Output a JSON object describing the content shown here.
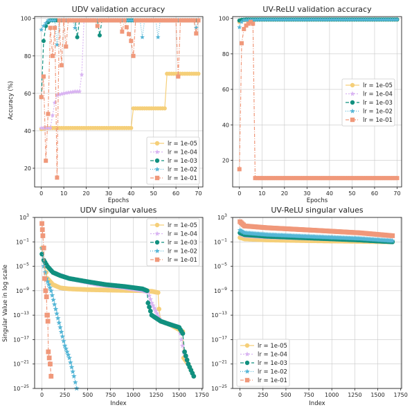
{
  "colors": {
    "lr=1e-05": "#f5cf79",
    "lr=1e-04": "#d9b4f2",
    "lr=1e-03": "#11907f",
    "lr=1e-02": "#55b6d6",
    "lr=1e-01": "#f0987a"
  },
  "chart_data": [
    {
      "type": "line",
      "title": "UDV validation accuracy",
      "xlabel": "Epochs",
      "ylabel": "Accuracy (%)",
      "xlim": [
        -3,
        72
      ],
      "ylim": [
        10,
        101
      ],
      "xticks": [
        0,
        10,
        20,
        30,
        40,
        50,
        60,
        70
      ],
      "yticks": [
        20,
        40,
        60,
        80,
        100
      ],
      "grid": true,
      "legend_position": "lower-right",
      "series": [
        {
          "name": "lr = 1e-05",
          "x": [
            0,
            2,
            5,
            10,
            20,
            30,
            40,
            41,
            45,
            50,
            55,
            56,
            60,
            65,
            70
          ],
          "y": [
            41,
            41.5,
            41.5,
            41.5,
            41.5,
            41.5,
            41.5,
            52,
            52,
            52,
            52,
            70.5,
            70.5,
            70.5,
            70.5
          ]
        },
        {
          "name": "lr = 1e-04",
          "x": [
            0,
            2,
            4,
            6,
            7,
            10,
            15,
            17,
            18,
            19,
            20,
            25,
            30,
            40,
            50,
            60,
            70
          ],
          "y": [
            41.5,
            41.5,
            41.5,
            55,
            59,
            60,
            61,
            61,
            70,
            99,
            99,
            99,
            99,
            99,
            99,
            99,
            99
          ]
        },
        {
          "name": "lr = 1e-03",
          "x": [
            0,
            1,
            2,
            3,
            4,
            6,
            10,
            15,
            16,
            17,
            20,
            25,
            26,
            27,
            30,
            40,
            50,
            60,
            70
          ],
          "y": [
            58,
            88,
            96,
            98,
            99,
            99,
            99,
            99,
            90,
            99,
            99,
            99,
            91,
            99,
            99,
            99,
            99,
            99,
            99
          ]
        },
        {
          "name": "lr = 1e-02",
          "x": [
            0,
            1,
            3,
            6,
            7,
            8,
            10,
            14,
            15,
            16,
            20,
            30,
            40,
            44,
            45,
            46,
            50,
            51,
            52,
            53,
            60,
            68,
            69,
            70
          ],
          "y": [
            94,
            96,
            99,
            99,
            86,
            99,
            99,
            99,
            95,
            99,
            99,
            99,
            99,
            99,
            90,
            99,
            99,
            99,
            90,
            99,
            99,
            99,
            95,
            99
          ]
        },
        {
          "name": "lr = 1e-01",
          "x": [
            0,
            1,
            2,
            3,
            4,
            5,
            6,
            7,
            8,
            9,
            10,
            11,
            12,
            14,
            16,
            20,
            24,
            25,
            26,
            30,
            35,
            36,
            37,
            40,
            41,
            42,
            45,
            50,
            55,
            60,
            61,
            62,
            65,
            68,
            69,
            70
          ],
          "y": [
            58,
            69,
            24,
            49,
            95,
            80,
            95,
            15,
            99,
            75,
            99,
            85,
            99,
            99,
            99,
            99,
            99,
            96,
            99,
            99,
            99,
            93,
            99,
            88,
            80,
            99,
            99,
            99,
            99,
            99,
            69,
            99,
            99,
            99,
            92,
            99
          ]
        }
      ]
    },
    {
      "type": "line",
      "title": "UV-ReLU validation accuracy",
      "xlabel": "Epochs",
      "ylabel": "",
      "xlim": [
        -3,
        72
      ],
      "ylim": [
        5,
        101
      ],
      "xticks": [
        0,
        10,
        20,
        30,
        40,
        50,
        60,
        70
      ],
      "yticks": [
        20,
        40,
        60,
        80,
        100
      ],
      "grid": true,
      "legend_position": "center-right",
      "series": [
        {
          "name": "lr = 1e-05",
          "x": [
            0,
            1,
            3,
            5,
            10,
            20,
            30,
            40,
            50,
            60,
            70
          ],
          "y": [
            98,
            99,
            99,
            99.3,
            99.3,
            99.3,
            99.3,
            99.3,
            99.3,
            99.3,
            99.3
          ]
        },
        {
          "name": "lr = 1e-04",
          "x": [
            0,
            1,
            3,
            5,
            10,
            20,
            30,
            40,
            50,
            60,
            70
          ],
          "y": [
            98.5,
            99,
            99.3,
            99.3,
            99.3,
            99.3,
            99.3,
            99.3,
            99.3,
            99.3,
            99.3
          ]
        },
        {
          "name": "lr = 1e-03",
          "x": [
            0,
            1,
            3,
            5,
            10,
            20,
            30,
            40,
            50,
            60,
            70
          ],
          "y": [
            98.8,
            99.2,
            99.4,
            99.4,
            99.4,
            99.4,
            99.4,
            99.4,
            99.4,
            99.4,
            99.4
          ]
        },
        {
          "name": "lr = 1e-02",
          "x": [
            0,
            1,
            2,
            3,
            5,
            10,
            20,
            30,
            40,
            50,
            60,
            70
          ],
          "y": [
            95,
            98,
            99,
            99,
            99.2,
            99.3,
            99.3,
            99.3,
            99.3,
            99.3,
            99.3,
            99.3
          ]
        },
        {
          "name": "lr = 1e-01",
          "x": [
            0,
            1,
            2,
            3,
            4,
            5,
            6,
            7,
            10,
            20,
            30,
            40,
            50,
            60,
            70
          ],
          "y": [
            15,
            86,
            94,
            96,
            97,
            98,
            97,
            10,
            10,
            10,
            10,
            10,
            10,
            10,
            10
          ]
        }
      ]
    },
    {
      "type": "line",
      "title": "UDV singular values",
      "xlabel": "Index",
      "ylabel": "Singular Value in log scale",
      "yscale": "log",
      "xlim": [
        -80,
        1760
      ],
      "ylim": [
        1e-25,
        1000
      ],
      "xticks": [
        0,
        250,
        500,
        750,
        1000,
        1250,
        1500,
        1750
      ],
      "yticks": [
        1e-25,
        1e-21,
        1e-17,
        1e-13,
        1e-09,
        1e-05,
        0.1,
        1000
      ],
      "grid": true,
      "legend_position": "top-right",
      "series": [
        {
          "name": "lr = 1e-05",
          "x": [
            0,
            20,
            60,
            120,
            200,
            300,
            500,
            800,
            1100,
            1200,
            1270,
            1280,
            1300,
            1400,
            1540,
            1550,
            1600,
            1660
          ],
          "y": [
            0.01,
            0.0001,
            1e-07,
            1e-08,
            3e-09,
            2e-09,
            1.5e-09,
            1.2e-09,
            1e-09,
            8e-10,
            5e-10,
            1e-12,
            1e-14,
            3e-15,
            2e-16,
            1e-20,
            1e-21,
            1e-23
          ]
        },
        {
          "name": "lr = 1e-04",
          "x": [
            0,
            20,
            60,
            120,
            300,
            600,
            900,
            1100,
            1160,
            1200,
            1300,
            1500,
            1550,
            1600,
            1660
          ],
          "y": [
            0.001,
            0.0001,
            1e-05,
            1e-06,
            1e-07,
            1e-08,
            3e-09,
            1e-09,
            6e-10,
            1e-11,
            1e-14,
            1e-15,
            1e-19,
            1e-21,
            1e-23
          ]
        },
        {
          "name": "lr = 1e-03",
          "x": [
            0,
            20,
            60,
            120,
            200,
            300,
            500,
            700,
            900,
            1100,
            1150,
            1160,
            1200,
            1300,
            1400,
            1500,
            1540,
            1560,
            1600,
            1660
          ],
          "y": [
            0.001,
            0.0001,
            1e-05,
            1e-06,
            3e-07,
            1e-07,
            3e-08,
            1e-08,
            5e-09,
            2e-09,
            1e-09,
            1e-11,
            1e-13,
            1e-14,
            3e-15,
            1e-15,
            1e-16,
            1e-19,
            1e-21,
            1e-23
          ]
        },
        {
          "name": "lr = 1e-02",
          "x": [
            0,
            20,
            50,
            100,
            150,
            200,
            250,
            300,
            350,
            380
          ],
          "y": [
            0.01,
            1e-05,
            1e-07,
            1e-09,
            1e-12,
            1e-15,
            1e-18,
            1e-20,
            1e-23,
            1e-25
          ]
        },
        {
          "name": "lr = 1e-01",
          "x": [
            0,
            5,
            10,
            20,
            30,
            40,
            50,
            55,
            60,
            65,
            70,
            80,
            90,
            100
          ],
          "y": [
            100,
            10,
            1,
            0.01,
            1e-07,
            1e-09,
            1e-10,
            1e-13,
            1e-13,
            1e-14,
            1e-19,
            1e-20,
            1e-21,
            1e-23
          ]
        }
      ]
    },
    {
      "type": "line",
      "title": "UV-ReLU singular values",
      "xlabel": "Index",
      "ylabel": "",
      "yscale": "log",
      "xlim": [
        -80,
        1760
      ],
      "ylim": [
        1e-25,
        1000
      ],
      "xticks": [
        0,
        250,
        500,
        750,
        1000,
        1250,
        1500,
        1750
      ],
      "yticks": [
        1e-25,
        1e-21,
        1e-17,
        1e-13,
        1e-09,
        1e-05,
        0.1,
        1000
      ],
      "grid": true,
      "legend_position": "lower-left",
      "series": [
        {
          "name": "lr = 1e-05",
          "x": [
            0,
            50,
            300,
            800,
            1300,
            1660
          ],
          "y": [
            0.5,
            0.3,
            0.2,
            0.15,
            0.12,
            0.1
          ]
        },
        {
          "name": "lr = 1e-04",
          "x": [
            0,
            50,
            300,
            800,
            1300,
            1660
          ],
          "y": [
            2,
            1,
            0.6,
            0.35,
            0.22,
            0.15
          ]
        },
        {
          "name": "lr = 1e-03",
          "x": [
            0,
            50,
            300,
            800,
            1300,
            1660
          ],
          "y": [
            3,
            1.5,
            0.8,
            0.4,
            0.2,
            0.1
          ]
        },
        {
          "name": "lr = 1e-02",
          "x": [
            0,
            50,
            300,
            800,
            1300,
            1660
          ],
          "y": [
            8,
            3,
            1.5,
            0.7,
            0.35,
            0.15
          ]
        },
        {
          "name": "lr = 1e-01",
          "x": [
            0,
            50,
            300,
            800,
            1300,
            1660
          ],
          "y": [
            200,
            40,
            20,
            8,
            3,
            1
          ]
        }
      ]
    }
  ]
}
